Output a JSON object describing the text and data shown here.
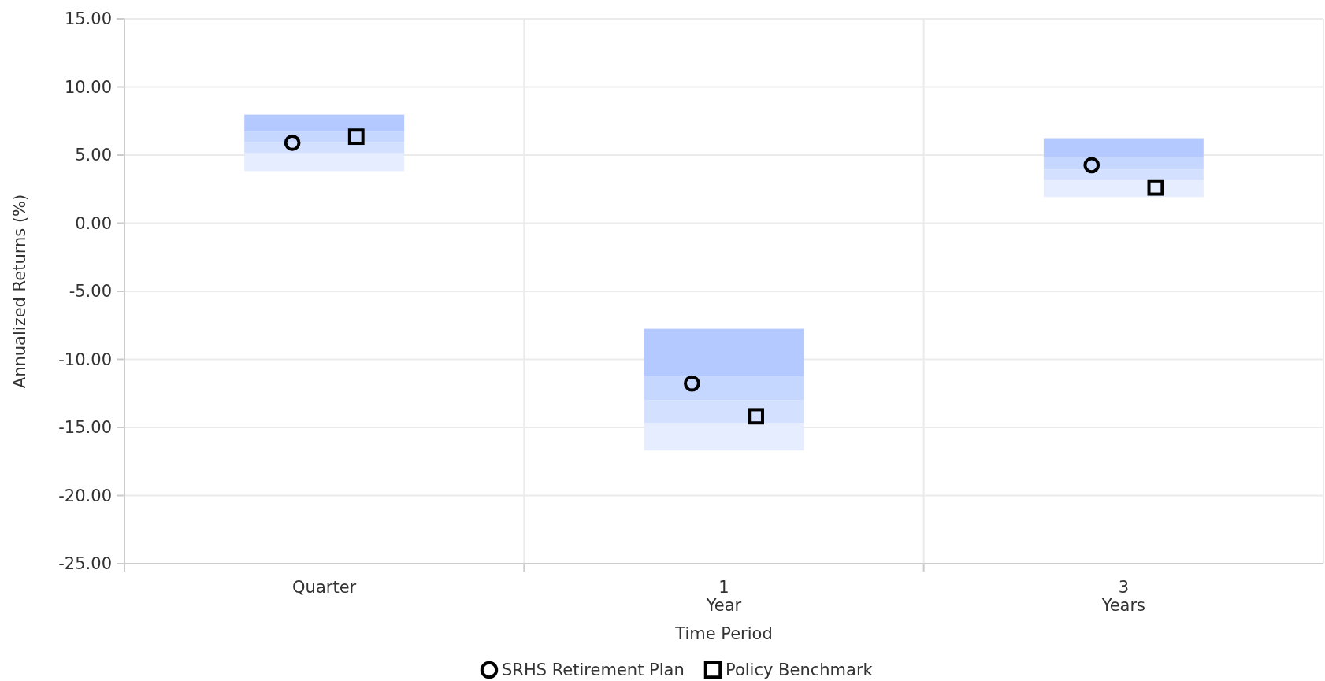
{
  "chart_data": {
    "type": "bar",
    "ylabel": "Annualized Returns (%)",
    "xlabel": "Time Period",
    "categories": [
      "Quarter",
      "1\nYear",
      "3\nYears"
    ],
    "ylim": [
      -25,
      15
    ],
    "yticks": [
      {
        "value": -25,
        "label": "-25.00"
      },
      {
        "value": -20,
        "label": "-20.00"
      },
      {
        "value": -15,
        "label": "-15.00"
      },
      {
        "value": -10,
        "label": "-10.00"
      },
      {
        "value": -5,
        "label": "-5.00"
      },
      {
        "value": 0,
        "label": "0.00"
      },
      {
        "value": 5,
        "label": "5.00"
      },
      {
        "value": 10,
        "label": "10.00"
      },
      {
        "value": 15,
        "label": "15.00"
      }
    ],
    "grid": true,
    "legend": "bottom",
    "series": [
      {
        "color": "#e5edff",
        "base": [
          3.82,
          -16.69,
          1.92
        ],
        "values": [
          1.32,
          2.03,
          1.26
        ]
      },
      {
        "color": "#d4e0ff",
        "base": [
          5.14,
          -14.66,
          3.18
        ],
        "values": [
          0.81,
          1.67,
          0.75
        ]
      },
      {
        "color": "#c5d6ff",
        "base": [
          5.95,
          -12.99,
          3.93
        ],
        "values": [
          0.76,
          1.74,
          0.93
        ]
      },
      {
        "color": "#b4c9ff",
        "base": [
          6.71,
          -11.25,
          4.86
        ],
        "values": [
          1.26,
          3.5,
          1.38
        ]
      },
      {
        "type": "scatter",
        "name": "SRHS Retirement Plan",
        "color": "#000000",
        "marker": "circle",
        "x": [
          "Quarter",
          "1\nYear",
          "3\nYears"
        ],
        "values": [
          5.9,
          -11.77,
          4.26
        ]
      },
      {
        "type": "scatter",
        "name": "Policy Benchmark",
        "color": "#000000",
        "marker": "square",
        "x": [
          "Quarter",
          "1\nYear",
          "3\nYears"
        ],
        "values": [
          6.35,
          -14.18,
          2.62
        ]
      }
    ]
  }
}
